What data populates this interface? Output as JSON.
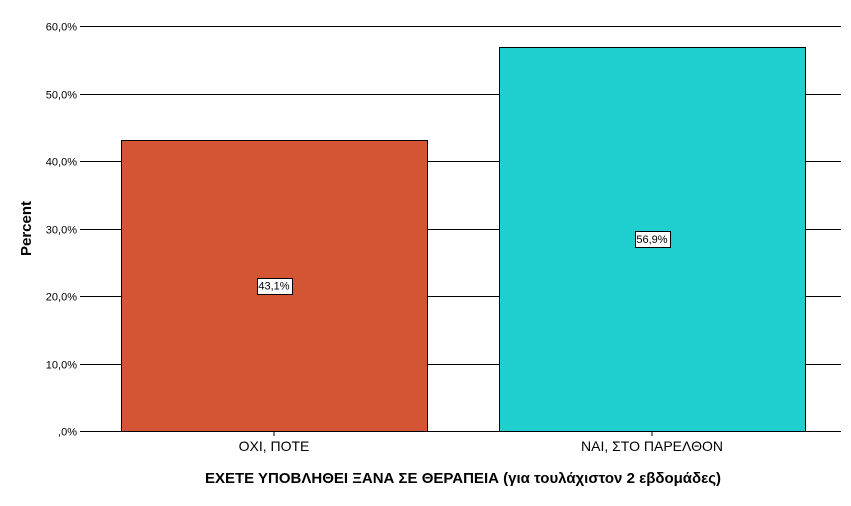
{
  "chart_data": {
    "type": "bar",
    "categories": [
      "ΟΧΙ, ΠΟΤΕ",
      "ΝΑΙ, ΣΤΟ ΠΑΡΕΛΘΟΝ"
    ],
    "values": [
      43.1,
      56.9
    ],
    "value_labels": [
      "43,1%",
      "56,9%"
    ],
    "colors": [
      "#d35533",
      "#1fcfcf"
    ],
    "xlabel": "ΕΧΕΤΕ ΥΠΟΒΛΗΘΕΙ ΞΑΝΑ ΣΕ ΘΕΡΑΠΕΙΑ (για τουλάχιστον 2 εβδομάδες)",
    "ylabel": "Percent",
    "ylim": [
      0,
      60
    ],
    "yticks": [
      0,
      10,
      20,
      30,
      40,
      50,
      60
    ],
    "ytick_labels": [
      ",0%",
      "10,0%",
      "20,0%",
      "30,0%",
      "40,0%",
      "50,0%",
      "60,0%"
    ],
    "grid": true
  }
}
